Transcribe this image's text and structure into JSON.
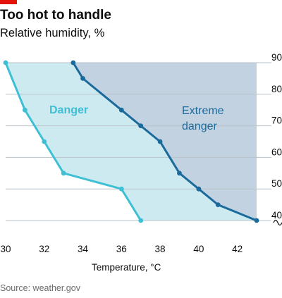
{
  "header": {
    "title": "Too hot to handle",
    "subtitle": "Relative humidity, %",
    "brand_color": "#e3120b"
  },
  "source": "Source: weather.gov",
  "chart_data": {
    "type": "area",
    "xlabel": "Temperature, °C",
    "ylabel": "Relative humidity, %",
    "xlim": [
      30,
      43
    ],
    "ylim": [
      40,
      90
    ],
    "x_ticks": [
      30,
      32,
      34,
      36,
      38,
      40,
      42
    ],
    "y_ticks": [
      40,
      50,
      60,
      70,
      80,
      90
    ],
    "y_axis_position": "right",
    "y_axis_broken": true,
    "grid": true,
    "series": [
      {
        "name": "Danger",
        "color": "#3ebfd4",
        "fill": "#cdeaf0",
        "points": [
          [
            30,
            90
          ],
          [
            31,
            75
          ],
          [
            32,
            65
          ],
          [
            33,
            55
          ],
          [
            36,
            50
          ],
          [
            37,
            40
          ]
        ]
      },
      {
        "name": "Extreme danger",
        "color": "#1a6a9c",
        "fill": "#c3d2e1",
        "points": [
          [
            33.5,
            90
          ],
          [
            34,
            85
          ],
          [
            36,
            75
          ],
          [
            37,
            70
          ],
          [
            38,
            65
          ],
          [
            39,
            55
          ],
          [
            40,
            50
          ],
          [
            41,
            45
          ],
          [
            43,
            40
          ]
        ]
      }
    ]
  }
}
